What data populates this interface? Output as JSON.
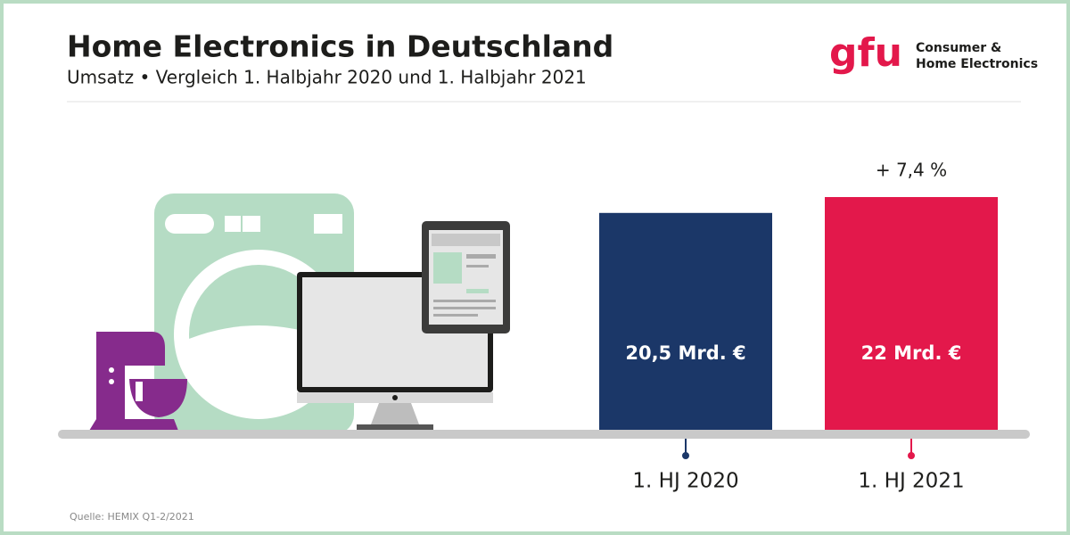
{
  "chart_data": {
    "type": "bar",
    "title": "Home Electronics in Deutschland",
    "subtitle": "Umsatz • Vergleich 1. Halbjahr 2020 und 1. Halbjahr 2021",
    "categories": [
      "1. HJ 2020",
      "1. HJ 2021"
    ],
    "values": [
      20.5,
      22
    ],
    "value_labels": [
      "20,5 Mrd. €",
      "22 Mrd. €"
    ],
    "colors": [
      "#1b3768",
      "#e3184b"
    ],
    "annotation": "+ 7,4 %",
    "source": "Quelle: HEMIX Q1-2/2021"
  },
  "logo": {
    "mark": "gfu",
    "lines": [
      "Consumer &",
      "Home Electronics"
    ]
  }
}
